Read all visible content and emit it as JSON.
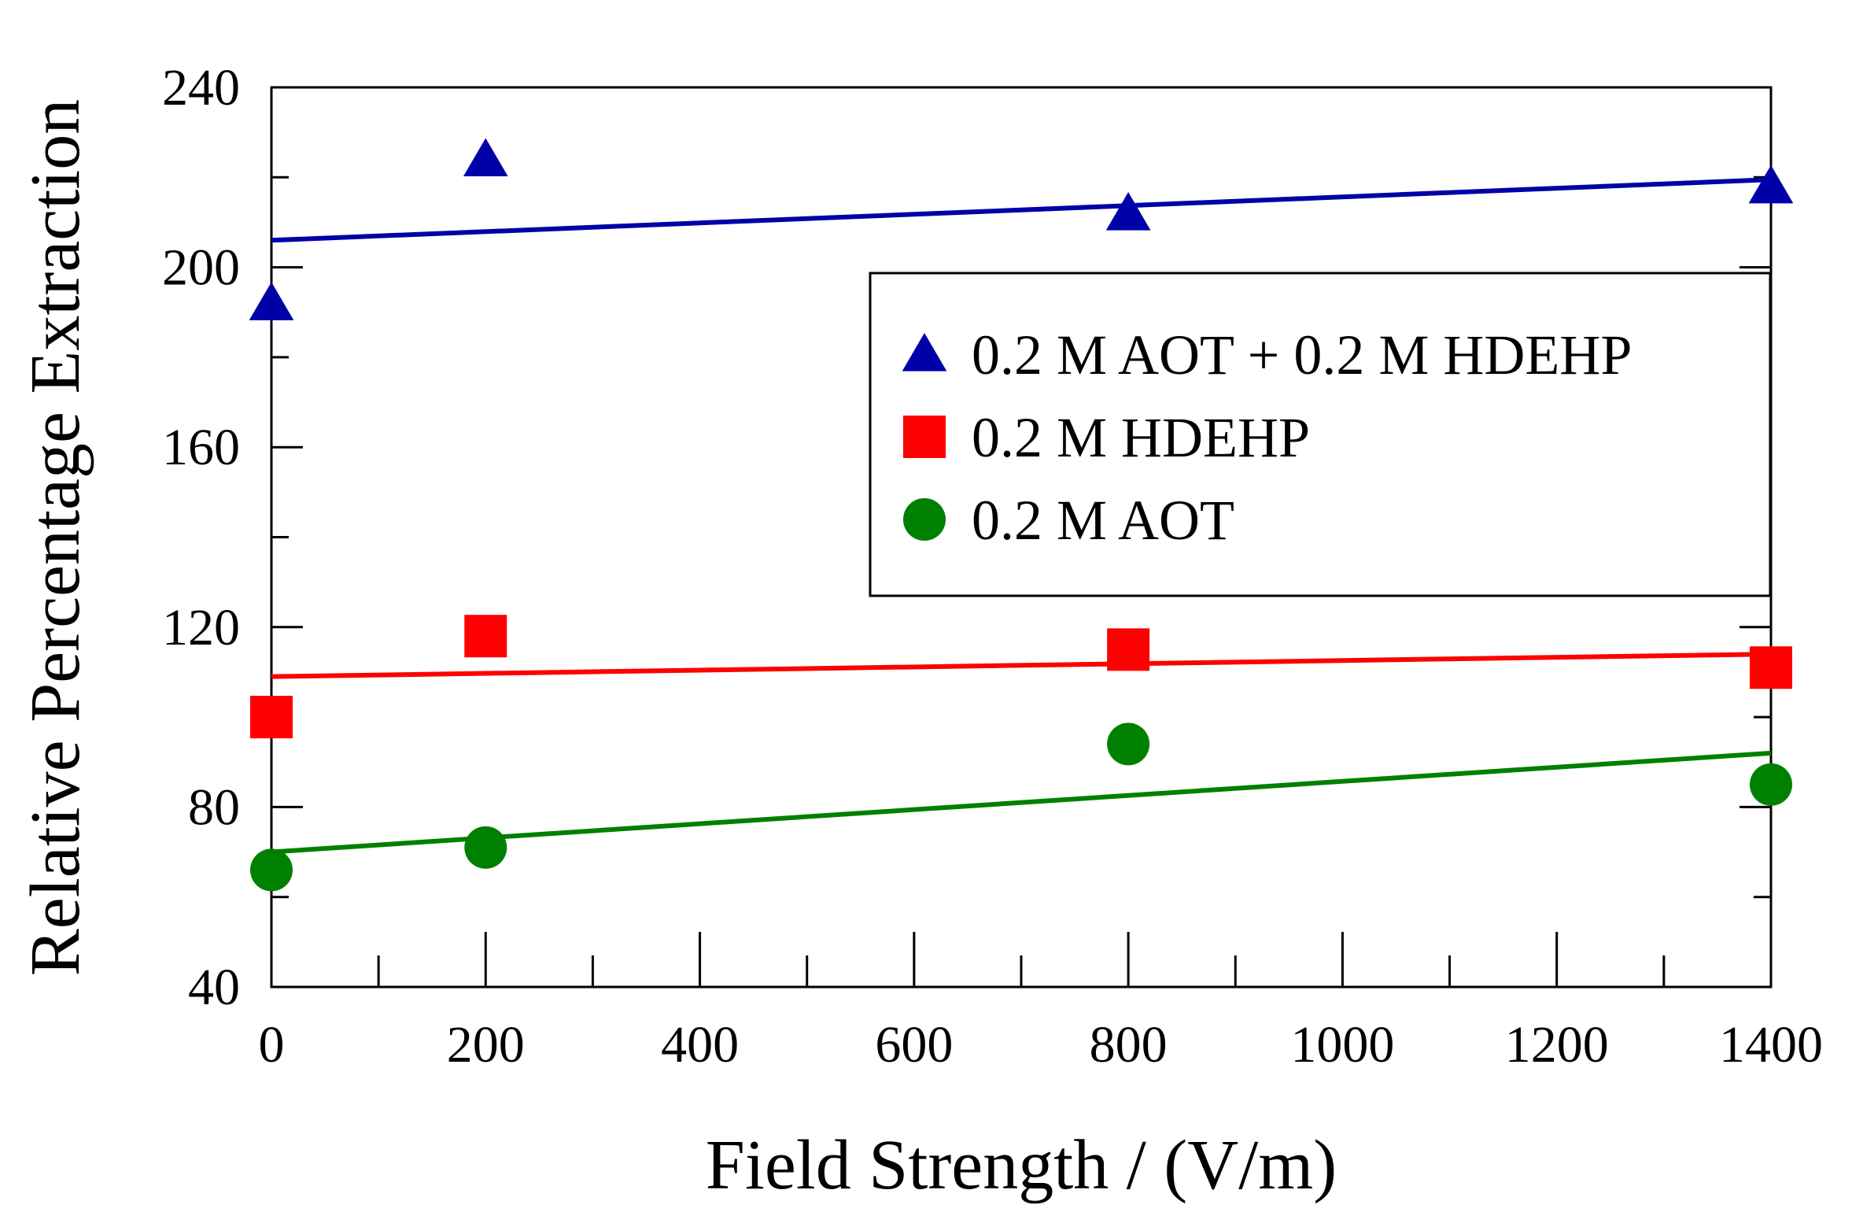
{
  "chart_data": {
    "type": "scatter",
    "title": "",
    "xlabel": "Field Strength / (V/m)",
    "ylabel": "Relative Percentage Extraction",
    "xlim": [
      0,
      1400
    ],
    "ylim": [
      40,
      240
    ],
    "x_ticks": [
      0,
      200,
      400,
      600,
      800,
      1000,
      1200,
      1400
    ],
    "x_minor_ticks": [
      100,
      300,
      500,
      700,
      900,
      1100,
      1300
    ],
    "y_ticks": [
      40,
      80,
      120,
      160,
      200,
      240
    ],
    "y_minor_ticks": [
      60,
      100,
      140,
      180,
      220
    ],
    "legend_position": "upper-right",
    "series": [
      {
        "name": "0.2 M AOT + 0.2 M HDEHP",
        "color": "#0000a8",
        "marker": "triangle",
        "x": [
          0,
          200,
          800,
          1400
        ],
        "y": [
          192,
          224,
          212,
          218
        ],
        "trend": {
          "x": [
            0,
            1400
          ],
          "y": [
            206,
            219.5
          ]
        }
      },
      {
        "name": "0.2 M HDEHP",
        "color": "#ff0000",
        "marker": "square",
        "x": [
          0,
          200,
          800,
          1400
        ],
        "y": [
          100,
          118,
          115,
          111
        ],
        "trend": {
          "x": [
            0,
            1400
          ],
          "y": [
            109,
            114
          ]
        }
      },
      {
        "name": "0.2 M AOT",
        "color": "#008000",
        "marker": "circle",
        "x": [
          0,
          200,
          800,
          1400
        ],
        "y": [
          66,
          71,
          94,
          85
        ],
        "trend": {
          "x": [
            0,
            1400
          ],
          "y": [
            70,
            92
          ]
        }
      }
    ]
  }
}
